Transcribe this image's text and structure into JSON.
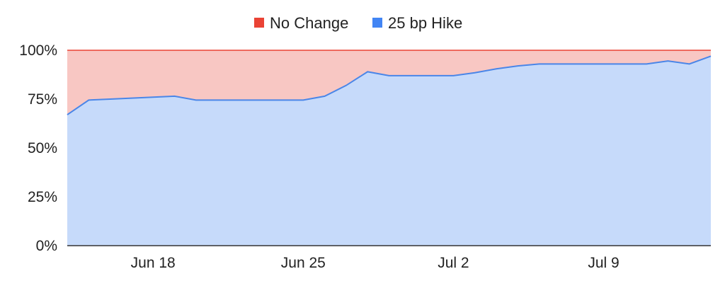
{
  "colors": {
    "no_change_fill": "#f8c7c3",
    "no_change_line": "#ea4335",
    "hike_fill": "#c6dafa",
    "hike_line": "#4a86e8",
    "axis": "#333333"
  },
  "chart_data": {
    "type": "area",
    "stacked": true,
    "legend": {
      "placement": "top",
      "items": [
        {
          "name": "No Change",
          "color": "#ea4335"
        },
        {
          "name": "25 bp Hike",
          "color": "#4285f4"
        }
      ]
    },
    "x": [
      "Jun 14",
      "Jun 15",
      "Jun 16",
      "Jun 17",
      "Jun 18",
      "Jun 19",
      "Jun 20",
      "Jun 21",
      "Jun 22",
      "Jun 23",
      "Jun 24",
      "Jun 25",
      "Jun 26",
      "Jun 27",
      "Jun 28",
      "Jun 29",
      "Jun 30",
      "Jul 1",
      "Jul 2",
      "Jul 3",
      "Jul 4",
      "Jul 5",
      "Jul 6",
      "Jul 7",
      "Jul 8",
      "Jul 9",
      "Jul 10",
      "Jul 11",
      "Jul 12",
      "Jul 13",
      "Jul 14"
    ],
    "x_ticks": [
      "Jun 18",
      "Jun 25",
      "Jul 2",
      "Jul 9"
    ],
    "y_ticks": [
      "0%",
      "25%",
      "50%",
      "75%",
      "100%"
    ],
    "ylim": [
      0,
      100
    ],
    "series": [
      {
        "name": "25 bp Hike",
        "values": [
          67,
          74.5,
          75,
          75.5,
          76,
          76.5,
          74.5,
          74.5,
          74.5,
          74.5,
          74.5,
          74.5,
          76.5,
          82,
          89,
          87,
          87,
          87,
          87,
          88.5,
          90.5,
          92,
          93,
          93,
          93,
          93,
          93,
          93,
          94.5,
          93,
          97
        ]
      },
      {
        "name": "No Change",
        "values": [
          33,
          25.5,
          25,
          24.5,
          24,
          23.5,
          25.5,
          25.5,
          25.5,
          25.5,
          25.5,
          25.5,
          23.5,
          18,
          11,
          13,
          13,
          13,
          13,
          11.5,
          9.5,
          8,
          7,
          7,
          7,
          7,
          7,
          7,
          5.5,
          7,
          3
        ]
      }
    ]
  }
}
